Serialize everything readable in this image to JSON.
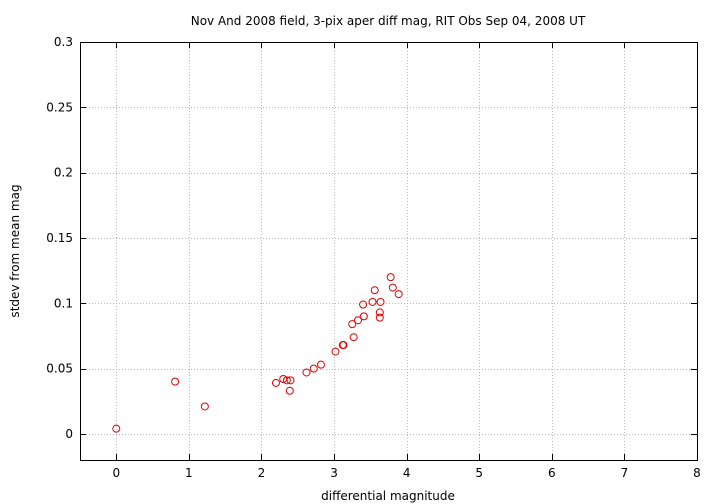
{
  "chart_data": {
    "type": "scatter",
    "title": "Nov And 2008 field,  3-pix aper diff mag, RIT Obs Sep 04, 2008 UT",
    "xlabel": "differential magnitude",
    "ylabel": "stdev from mean mag",
    "xlim": [
      -0.5,
      8
    ],
    "ylim": [
      -0.02,
      0.3
    ],
    "grid": true,
    "point_color": "#e00000",
    "xticks": [
      0,
      1,
      2,
      3,
      4,
      5,
      6,
      7,
      8
    ],
    "xtick_labels": [
      "0",
      "1",
      "2",
      "3",
      "4",
      "5",
      "6",
      "7",
      "8"
    ],
    "yticks": [
      0,
      0.05,
      0.1,
      0.15,
      0.2,
      0.25,
      0.3
    ],
    "ytick_labels": [
      "0",
      "0.05",
      "0.1",
      "0.15",
      "0.2",
      "0.25",
      "0.3"
    ],
    "series": [
      {
        "points": [
          [
            0.0,
            0.004
          ],
          [
            0.81,
            0.04
          ],
          [
            1.22,
            0.021
          ],
          [
            2.2,
            0.039
          ],
          [
            2.3,
            0.042
          ],
          [
            2.35,
            0.041
          ],
          [
            2.4,
            0.041
          ],
          [
            2.39,
            0.033
          ],
          [
            2.62,
            0.047
          ],
          [
            2.72,
            0.05
          ],
          [
            2.82,
            0.053
          ],
          [
            3.02,
            0.063
          ],
          [
            3.12,
            0.068
          ],
          [
            3.13,
            0.068
          ],
          [
            3.25,
            0.084
          ],
          [
            3.27,
            0.074
          ],
          [
            3.33,
            0.087
          ],
          [
            3.41,
            0.09
          ],
          [
            3.4,
            0.099
          ],
          [
            3.53,
            0.101
          ],
          [
            3.56,
            0.11
          ],
          [
            3.63,
            0.089
          ],
          [
            3.63,
            0.093
          ],
          [
            3.64,
            0.101
          ],
          [
            3.78,
            0.12
          ],
          [
            3.81,
            0.112
          ],
          [
            3.89,
            0.107
          ]
        ]
      }
    ]
  }
}
